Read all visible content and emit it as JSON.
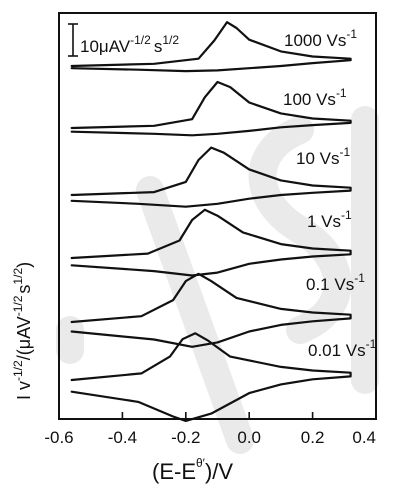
{
  "chart_data": {
    "type": "line",
    "title": "",
    "xlabel": "(E-E",
    "xlabel_suffix": ")/V",
    "xlabel_symbol": "θ′",
    "ylabel": "I v",
    "ylabel_exp1": "-1/2",
    "ylabel_mid": "/(μAV",
    "ylabel_exp2": "-1/2",
    "ylabel_s": "s",
    "ylabel_exp3": "1/2",
    "ylabel_end": ")",
    "xlim": [
      -0.6,
      0.4
    ],
    "x_ticks": [
      "-0.6",
      "-0.4",
      "-0.2",
      "0.0",
      "0.2",
      "0.4"
    ],
    "x_tick_values": [
      -0.6,
      -0.4,
      -0.2,
      0.0,
      0.2,
      0.4
    ],
    "grid": false,
    "scale_bar": {
      "value": "10μAV",
      "exp1": "-1/2",
      "unit": "s",
      "exp2": "1/2"
    },
    "series": [
      {
        "name": "1000 Vs",
        "exp": "-1",
        "forward": [
          [
            -0.56,
            0
          ],
          [
            -0.3,
            0.3
          ],
          [
            -0.16,
            1.0
          ],
          [
            -0.11,
            3.5
          ],
          [
            -0.07,
            6.0
          ],
          [
            -0.04,
            5.2
          ],
          [
            0.0,
            3.6
          ],
          [
            0.1,
            2.0
          ],
          [
            0.2,
            1.3
          ],
          [
            0.32,
            1.0
          ]
        ],
        "reverse": [
          [
            0.32,
            0.8
          ],
          [
            0.2,
            0.4
          ],
          [
            0.1,
            0.0
          ],
          [
            0.0,
            -0.3
          ],
          [
            -0.1,
            -0.6
          ],
          [
            -0.2,
            -0.7
          ],
          [
            -0.35,
            -0.5
          ],
          [
            -0.56,
            -0.3
          ]
        ]
      },
      {
        "name": "100 Vs",
        "exp": "-1",
        "forward": [
          [
            -0.56,
            0
          ],
          [
            -0.3,
            0.3
          ],
          [
            -0.18,
            1.2
          ],
          [
            -0.14,
            4.2
          ],
          [
            -0.1,
            6.3
          ],
          [
            -0.06,
            5.6
          ],
          [
            0.0,
            3.5
          ],
          [
            0.1,
            2.0
          ],
          [
            0.2,
            1.3
          ],
          [
            0.32,
            1.0
          ]
        ],
        "reverse": [
          [
            0.32,
            0.7
          ],
          [
            0.2,
            0.4
          ],
          [
            0.1,
            0.1
          ],
          [
            0.0,
            -0.4
          ],
          [
            -0.1,
            -0.8
          ],
          [
            -0.18,
            -1.0
          ],
          [
            -0.3,
            -0.8
          ],
          [
            -0.56,
            -0.5
          ]
        ]
      },
      {
        "name": "10 Vs",
        "exp": "-1",
        "forward": [
          [
            -0.56,
            0
          ],
          [
            -0.3,
            0.4
          ],
          [
            -0.2,
            1.8
          ],
          [
            -0.16,
            4.8
          ],
          [
            -0.12,
            6.5
          ],
          [
            -0.08,
            5.8
          ],
          [
            0.0,
            3.5
          ],
          [
            0.1,
            2.0
          ],
          [
            0.2,
            1.3
          ],
          [
            0.32,
            1.0
          ]
        ],
        "reverse": [
          [
            0.32,
            0.6
          ],
          [
            0.2,
            0.3
          ],
          [
            0.1,
            0.0
          ],
          [
            0.0,
            -0.5
          ],
          [
            -0.1,
            -1.2
          ],
          [
            -0.2,
            -1.6
          ],
          [
            -0.35,
            -1.2
          ],
          [
            -0.56,
            -0.8
          ]
        ]
      },
      {
        "name": "1 Vs",
        "exp": "-1",
        "forward": [
          [
            -0.56,
            0
          ],
          [
            -0.32,
            0.6
          ],
          [
            -0.22,
            2.4
          ],
          [
            -0.18,
            5.2
          ],
          [
            -0.14,
            6.6
          ],
          [
            -0.1,
            5.8
          ],
          [
            -0.02,
            3.5
          ],
          [
            0.1,
            1.9
          ],
          [
            0.2,
            1.3
          ],
          [
            0.32,
            1.0
          ]
        ],
        "reverse": [
          [
            0.32,
            0.5
          ],
          [
            0.2,
            0.2
          ],
          [
            0.1,
            -0.2
          ],
          [
            0.0,
            -0.8
          ],
          [
            -0.1,
            -2.0
          ],
          [
            -0.18,
            -2.4
          ],
          [
            -0.3,
            -1.8
          ],
          [
            -0.56,
            -1.0
          ]
        ]
      },
      {
        "name": "0.1 Vs",
        "exp": "-1",
        "forward": [
          [
            -0.56,
            0
          ],
          [
            -0.34,
            0.8
          ],
          [
            -0.24,
            3.0
          ],
          [
            -0.2,
            5.6
          ],
          [
            -0.16,
            6.6
          ],
          [
            -0.12,
            5.6
          ],
          [
            -0.04,
            3.3
          ],
          [
            0.1,
            1.8
          ],
          [
            0.2,
            1.3
          ],
          [
            0.32,
            1.0
          ]
        ],
        "reverse": [
          [
            0.32,
            0.5
          ],
          [
            0.2,
            0.1
          ],
          [
            0.1,
            -0.4
          ],
          [
            0.0,
            -1.3
          ],
          [
            -0.1,
            -2.8
          ],
          [
            -0.18,
            -3.4
          ],
          [
            -0.3,
            -2.4
          ],
          [
            -0.56,
            -1.3
          ]
        ]
      },
      {
        "name": "0.01 Vs",
        "exp": "-1",
        "forward": [
          [
            -0.56,
            0
          ],
          [
            -0.34,
            0.9
          ],
          [
            -0.25,
            3.2
          ],
          [
            -0.21,
            5.6
          ],
          [
            -0.17,
            6.4
          ],
          [
            -0.13,
            5.4
          ],
          [
            -0.06,
            3.2
          ],
          [
            0.1,
            1.8
          ],
          [
            0.2,
            1.3
          ],
          [
            0.32,
            1.0
          ]
        ],
        "reverse": [
          [
            0.32,
            0.5
          ],
          [
            0.2,
            0.1
          ],
          [
            0.1,
            -0.6
          ],
          [
            0.0,
            -1.8
          ],
          [
            -0.12,
            -4.6
          ],
          [
            -0.2,
            -5.6
          ],
          [
            -0.24,
            -5.0
          ],
          [
            -0.35,
            -3.0
          ],
          [
            -0.56,
            -1.6
          ]
        ]
      }
    ]
  }
}
